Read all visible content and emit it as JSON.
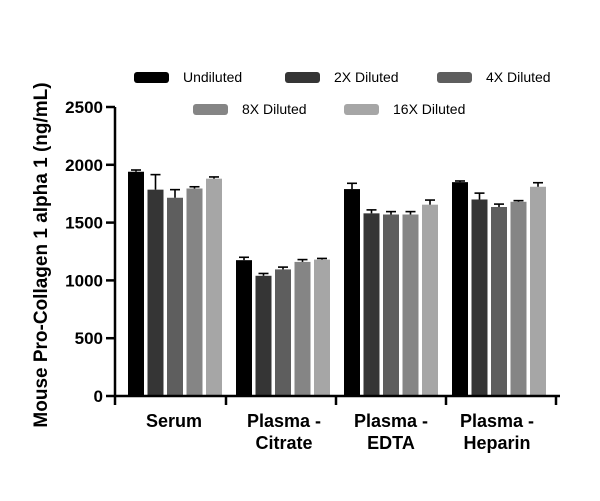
{
  "chart_data": {
    "type": "bar",
    "ylabel": "Mouse Pro-Collagen 1 alpha 1 (ng/mL)",
    "xlabel": "",
    "ylim": [
      0,
      2500
    ],
    "yticks": [
      0,
      500,
      1000,
      1500,
      2000,
      2500
    ],
    "categories": [
      [
        "Serum"
      ],
      [
        "Plasma -",
        "Citrate"
      ],
      [
        "Plasma -",
        "EDTA"
      ],
      [
        "Plasma -",
        "Heparin"
      ]
    ],
    "legend_position": "top",
    "series": [
      {
        "name": "Undiluted",
        "color": "#000000",
        "values": [
          1940,
          1175,
          1790,
          1850
        ],
        "errors": [
          15,
          25,
          50,
          10
        ]
      },
      {
        "name": "2X Diluted",
        "color": "#353535",
        "values": [
          1785,
          1040,
          1580,
          1700
        ],
        "errors": [
          130,
          20,
          30,
          55
        ]
      },
      {
        "name": "4X Diluted",
        "color": "#5e5e5e",
        "values": [
          1715,
          1095,
          1570,
          1635
        ],
        "errors": [
          70,
          20,
          25,
          25
        ]
      },
      {
        "name": "8X Diluted",
        "color": "#858585",
        "values": [
          1795,
          1160,
          1570,
          1680
        ],
        "errors": [
          15,
          20,
          25,
          10
        ]
      },
      {
        "name": "16X Diluted",
        "color": "#a6a6a6",
        "values": [
          1880,
          1180,
          1655,
          1810
        ],
        "errors": [
          15,
          10,
          40,
          35
        ]
      }
    ]
  }
}
